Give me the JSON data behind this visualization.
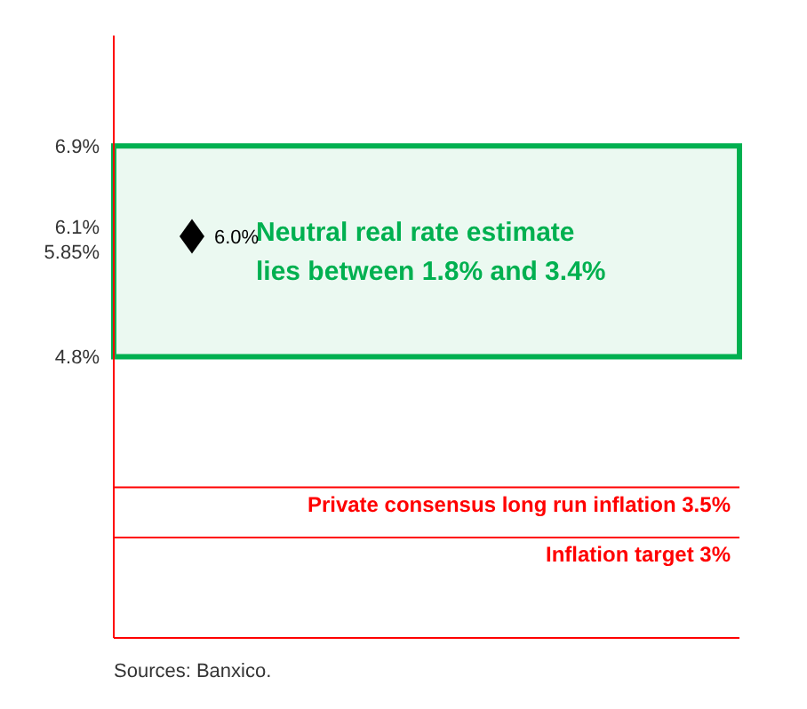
{
  "chart_data": {
    "type": "scatter",
    "categories": [
      null,
      null,
      null,
      null
    ],
    "series": [
      {
        "color": "#000000",
        "values": [
          6.0,
          null,
          null,
          null
        ],
        "value_labels": [
          "6.0%",
          null,
          null,
          null
        ]
      }
    ],
    "marker": "diamond",
    "tick_labels": "y",
    "grid": false,
    "legend": false,
    "ylim": [
      2,
      8
    ],
    "yticks": [
      {
        "value": 4.8,
        "label": "4.8%"
      },
      {
        "value": 5.85,
        "label": "5.85%"
      },
      {
        "value": 6.1,
        "label": "6.1%"
      },
      {
        "value": 6.9,
        "label": "6.9%"
      }
    ],
    "bands": [
      {
        "axis": "y",
        "from": 4.8,
        "to": 6.9,
        "label": "Neutral real rate estimate lies between 1.8% and 3.4%",
        "color": "#00b050"
      }
    ],
    "ref_lines": [
      {
        "axis": "y",
        "value": 3.5,
        "label": "Private consensus long run inflation 3.5%",
        "color": "#ff0000"
      },
      {
        "axis": "y",
        "value": 3,
        "label": "Inflation target 3%",
        "color": "#ff0000"
      }
    ],
    "annotations": [
      "Sources: Banxico."
    ]
  }
}
